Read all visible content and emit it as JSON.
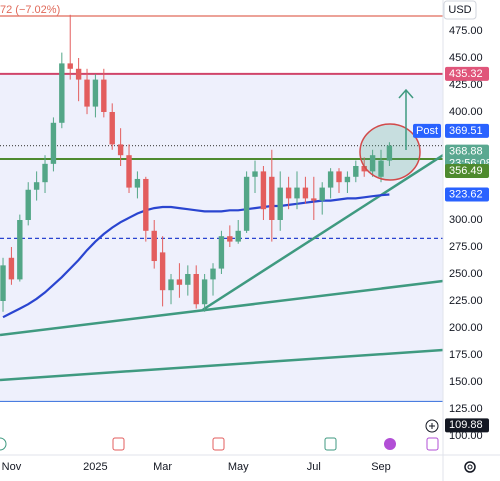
{
  "chart_data": {
    "type": "candlestick",
    "header_text": "72 (−7.02%)",
    "currency": "USD",
    "categories": [
      null,
      "Nov",
      null,
      null,
      null,
      null,
      null,
      null,
      null,
      null,
      null,
      "2025",
      null,
      null,
      null,
      null,
      null,
      null,
      null,
      "Mar",
      null,
      null,
      null,
      null,
      null,
      null,
      null,
      null,
      "May",
      null,
      null,
      null,
      null,
      null,
      null,
      null,
      null,
      "Jul",
      null,
      null,
      null,
      null,
      null,
      null,
      null,
      "Sep",
      null
    ],
    "open": [
      225,
      265,
      245,
      300,
      328,
      335,
      352,
      390,
      445,
      440,
      430,
      405,
      430,
      400,
      370,
      360,
      330,
      338,
      290,
      270,
      235,
      245,
      240,
      250,
      222,
      245,
      255,
      285,
      280,
      290,
      340,
      345,
      340,
      300,
      330,
      320,
      330,
      320,
      318,
      330,
      345,
      335,
      340,
      350,
      345,
      340,
      355
    ],
    "high": [
      265,
      275,
      305,
      335,
      345,
      360,
      395,
      455,
      490,
      450,
      440,
      435,
      440,
      408,
      385,
      370,
      345,
      340,
      300,
      285,
      250,
      260,
      258,
      258,
      250,
      260,
      290,
      295,
      300,
      345,
      355,
      350,
      365,
      345,
      340,
      345,
      340,
      340,
      335,
      348,
      348,
      345,
      355,
      358,
      365,
      365,
      372
    ],
    "low": [
      215,
      240,
      243,
      295,
      318,
      325,
      345,
      385,
      430,
      410,
      398,
      395,
      395,
      365,
      350,
      325,
      320,
      280,
      255,
      220,
      222,
      228,
      230,
      218,
      215,
      230,
      250,
      275,
      278,
      288,
      325,
      300,
      280,
      290,
      310,
      310,
      315,
      300,
      305,
      320,
      325,
      325,
      335,
      340,
      340,
      335,
      350
    ],
    "close": [
      258,
      245,
      300,
      328,
      335,
      352,
      390,
      445,
      440,
      430,
      405,
      430,
      400,
      370,
      360,
      330,
      338,
      290,
      262,
      235,
      245,
      240,
      250,
      222,
      245,
      255,
      285,
      280,
      290,
      340,
      345,
      310,
      300,
      330,
      320,
      330,
      320,
      318,
      330,
      345,
      335,
      340,
      350,
      345,
      360,
      355,
      368.88
    ],
    "up_color": "#53a687",
    "down_color": "#e35d5d",
    "lines": [
      {
        "color": "#2a45d0",
        "values": [
          210,
          214,
          218,
          222,
          227,
          233,
          240,
          247,
          255,
          263,
          272,
          280,
          287,
          293,
          298,
          302,
          306,
          309,
          311,
          312,
          312,
          311,
          310,
          309,
          308,
          308,
          308,
          309,
          309,
          310,
          311,
          312,
          313,
          313,
          314,
          315,
          316,
          317,
          318,
          318,
          319,
          320,
          320,
          321,
          322,
          323,
          323.62
        ]
      }
    ],
    "trendlines": [
      {
        "color": "#3f9a80",
        "x": [
          23.8,
          52.38
        ],
        "values": [
          217,
          360
        ]
      },
      {
        "color": "#3f9a80",
        "x": [
          -0.36,
          52.38
        ],
        "values": [
          193.5,
          243.5
        ]
      },
      {
        "color": "#3f9a80",
        "x": [
          -0.36,
          52.38
        ],
        "values": [
          151.9,
          179.6
        ]
      }
    ],
    "hlines": [
      {
        "value": 488.9,
        "color": "#e06a5a",
        "style": "solid"
      },
      {
        "value": 435.32,
        "color": "#d0446a",
        "style": "thick"
      },
      {
        "value": 368.88,
        "color": "#555555",
        "style": "dotted"
      },
      {
        "value": 356.49,
        "color": "#4e8a2e",
        "style": "thick"
      },
      {
        "value": 283,
        "color": "#2a45d0",
        "style": "dashed"
      },
      {
        "value": 132,
        "color": "#4a7de0",
        "style": "solid"
      }
    ],
    "price_labels": [
      {
        "value": 435.32,
        "color": "#e0557a"
      },
      {
        "value": 369.51,
        "color": "#2962ff",
        "tag": "Post"
      },
      {
        "value": 368.88,
        "color": "#5aa890",
        "sub": "23:56:08"
      },
      {
        "value": 356.49,
        "color": "#4e8a2e"
      },
      {
        "value": 323.62,
        "color": "#2962ff"
      },
      {
        "value": 109.88,
        "color": "#131722"
      }
    ],
    "xlim": [
      -0.36,
      52.38
    ],
    "ylim": [
      82.4,
      503.7
    ],
    "yticks": [
      {
        "value": 475,
        "label": "475.00"
      },
      {
        "value": 450,
        "label": "450.00"
      },
      {
        "value": 425,
        "label": "425.00"
      },
      {
        "value": 400,
        "label": "400.00"
      },
      {
        "value": 300,
        "label": "300.00"
      },
      {
        "value": 275,
        "label": "275.00"
      },
      {
        "value": 250,
        "label": "250.00"
      },
      {
        "value": 225,
        "label": "225.00"
      },
      {
        "value": 200,
        "label": "200.00"
      },
      {
        "value": 175,
        "label": "175.00"
      },
      {
        "value": 150,
        "label": "150.00"
      },
      {
        "value": 125,
        "label": "125.00"
      },
      {
        "value": 100,
        "label": "100.00"
      }
    ]
  }
}
